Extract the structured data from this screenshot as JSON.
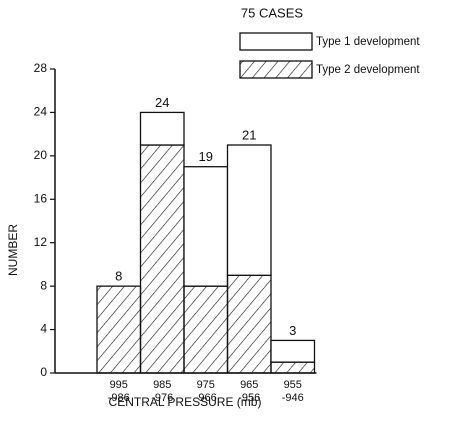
{
  "chart_data": {
    "type": "stacked_bar",
    "title": "75 CASES",
    "categories": [
      [
        "995",
        "-986"
      ],
      [
        "985",
        "-976"
      ],
      [
        "975",
        "-966"
      ],
      [
        "965",
        "-956"
      ],
      [
        "955",
        "-946"
      ]
    ],
    "series": [
      {
        "name": "Type 2 development",
        "color": "#000000",
        "hatch": true,
        "values": [
          8,
          21,
          8,
          9,
          1
        ]
      },
      {
        "name": "Type 1 development",
        "color": "#ffffff",
        "hatch": false,
        "values": [
          0,
          3,
          11,
          12,
          2
        ]
      }
    ],
    "total_labels": [
      8,
      24,
      19,
      21,
      3
    ],
    "ylim": [
      0,
      28
    ],
    "yticks": [
      0,
      4,
      8,
      12,
      16,
      20,
      24,
      28
    ],
    "xlabel": "CENTRAL PRESSURE (mb)",
    "ylabel": "NUMBER",
    "grid": false
  }
}
